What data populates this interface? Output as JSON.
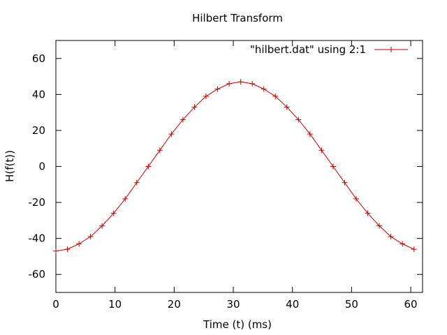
{
  "chart_data": {
    "type": "line",
    "title": "Hilbert Transform",
    "xlabel": "Time (t) (ms)",
    "ylabel": "H(f(t))",
    "xlim": [
      0,
      62
    ],
    "ylim": [
      -70,
      70
    ],
    "xticks": [
      0,
      10,
      20,
      30,
      40,
      50,
      60
    ],
    "yticks": [
      -60,
      -40,
      -20,
      0,
      20,
      40,
      60
    ],
    "grid": false,
    "legend_position": "top-right",
    "series": [
      {
        "name": "\"hilbert.dat\" using 2:1",
        "color": "#cc0000",
        "marker": "plus",
        "x": [
          0,
          1.95,
          3.91,
          5.86,
          7.81,
          9.77,
          11.72,
          13.67,
          15.63,
          17.58,
          19.53,
          21.48,
          23.44,
          25.39,
          27.34,
          29.3,
          31.25,
          33.2,
          35.16,
          37.11,
          39.06,
          41.02,
          42.97,
          44.92,
          46.88,
          48.83,
          50.78,
          52.73,
          54.69,
          56.64,
          58.59,
          60.55
        ],
        "y": [
          -47,
          -46,
          -43,
          -39,
          -33,
          -26,
          -18,
          -9,
          0,
          9,
          18,
          26,
          33,
          39,
          43,
          46,
          47,
          46,
          43,
          39,
          33,
          26,
          18,
          9,
          0,
          -9,
          -18,
          -26,
          -33,
          -39,
          -43,
          -46
        ]
      }
    ]
  }
}
